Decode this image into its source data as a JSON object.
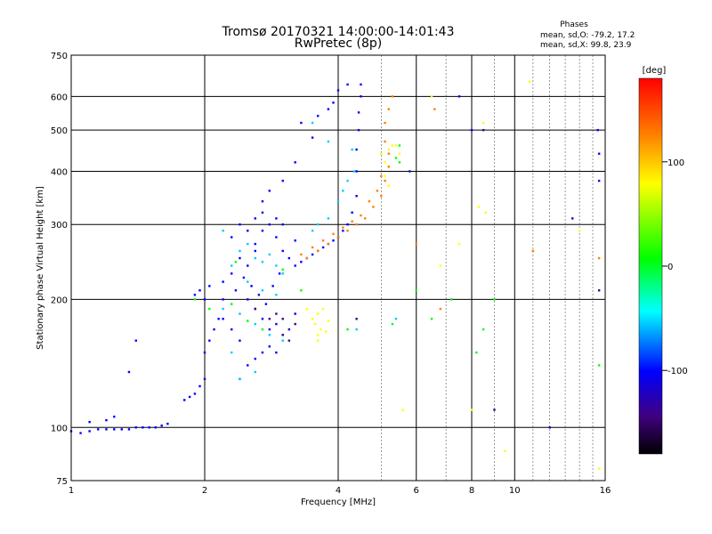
{
  "chart_data": {
    "type": "scatter",
    "title": "Tromsø 20170321 14:00:00-14:01:43",
    "subtitle": "RwPretec (8p)",
    "xlabel": "Frequency [MHz]",
    "ylabel": "Stationary phase Virtual Height [km]",
    "x_scale": "log",
    "y_scale": "log",
    "xlim": [
      1,
      16
    ],
    "ylim": [
      75,
      750
    ],
    "x_ticks": [
      1,
      2,
      4,
      6,
      8,
      10,
      16
    ],
    "y_ticks": [
      75,
      100,
      200,
      300,
      400,
      500,
      600,
      750
    ],
    "grid": true,
    "phases_info": {
      "heading": "Phases",
      "line_o": "mean, sd,O: -79.2, 17.2",
      "line_x": "mean, sd,X:  99.8, 23.9"
    },
    "colorbar": {
      "label": "[deg]",
      "range": [
        -180,
        180
      ],
      "ticks": [
        100,
        0,
        -100
      ],
      "colors": [
        "#ff0000",
        "#ff8000",
        "#ffff00",
        "#00ff00",
        "#00ffff",
        "#0000ff",
        "#400080",
        "#000000"
      ]
    },
    "series": [
      {
        "color_phase": -100,
        "points": [
          [
            1.0,
            98
          ],
          [
            1.05,
            97
          ],
          [
            1.1,
            98
          ],
          [
            1.15,
            99
          ],
          [
            1.2,
            99
          ],
          [
            1.25,
            99
          ],
          [
            1.3,
            99
          ],
          [
            1.35,
            99
          ],
          [
            1.4,
            100
          ],
          [
            1.45,
            100
          ],
          [
            1.5,
            100
          ],
          [
            1.55,
            100
          ],
          [
            1.6,
            101
          ],
          [
            1.65,
            102
          ],
          [
            1.2,
            104
          ],
          [
            1.25,
            106
          ],
          [
            1.1,
            103
          ],
          [
            1.35,
            135
          ],
          [
            1.4,
            160
          ],
          [
            1.8,
            116
          ],
          [
            1.85,
            118
          ],
          [
            1.9,
            120
          ],
          [
            1.95,
            125
          ],
          [
            2.0,
            130
          ],
          [
            2.0,
            150
          ],
          [
            2.05,
            160
          ],
          [
            2.1,
            170
          ],
          [
            2.15,
            180
          ],
          [
            1.9,
            205
          ],
          [
            1.95,
            210
          ],
          [
            2.0,
            200
          ],
          [
            2.05,
            215
          ],
          [
            2.2,
            220
          ],
          [
            2.3,
            230
          ],
          [
            2.4,
            250
          ],
          [
            2.5,
            240
          ],
          [
            2.6,
            260
          ],
          [
            2.2,
            180
          ],
          [
            2.3,
            170
          ],
          [
            2.4,
            160
          ],
          [
            2.5,
            200
          ],
          [
            2.6,
            190
          ],
          [
            2.7,
            180
          ],
          [
            2.8,
            170
          ],
          [
            2.9,
            175
          ],
          [
            3.0,
            165
          ],
          [
            2.3,
            280
          ],
          [
            2.4,
            300
          ],
          [
            2.5,
            290
          ],
          [
            2.6,
            310
          ],
          [
            2.7,
            320
          ],
          [
            2.8,
            300
          ],
          [
            2.9,
            280
          ],
          [
            3.0,
            260
          ],
          [
            3.1,
            250
          ],
          [
            3.2,
            240
          ],
          [
            3.3,
            245
          ],
          [
            3.4,
            250
          ],
          [
            3.5,
            255
          ],
          [
            3.6,
            260
          ],
          [
            3.7,
            265
          ],
          [
            3.8,
            270
          ],
          [
            3.9,
            275
          ],
          [
            4.0,
            280
          ],
          [
            4.1,
            290
          ],
          [
            4.2,
            300
          ],
          [
            4.3,
            320
          ],
          [
            4.4,
            350
          ],
          [
            4.4,
            400
          ],
          [
            4.4,
            450
          ],
          [
            4.45,
            500
          ],
          [
            4.45,
            550
          ],
          [
            4.5,
            600
          ],
          [
            4.5,
            640
          ],
          [
            4.0,
            620
          ],
          [
            4.2,
            640
          ],
          [
            3.0,
            380
          ],
          [
            3.2,
            420
          ],
          [
            3.5,
            480
          ],
          [
            3.8,
            560
          ],
          [
            2.7,
            340
          ],
          [
            2.8,
            360
          ],
          [
            2.4,
            130
          ],
          [
            2.5,
            140
          ],
          [
            2.6,
            145
          ],
          [
            2.7,
            150
          ],
          [
            2.8,
            155
          ],
          [
            2.9,
            150
          ],
          [
            3.1,
            170
          ],
          [
            3.2,
            185
          ],
          [
            15.5,
            380
          ],
          [
            15.4,
            500
          ],
          [
            12.0,
            100
          ],
          [
            13.5,
            310
          ],
          [
            7.5,
            600
          ],
          [
            8.0,
            500
          ],
          [
            5.8,
            400
          ],
          [
            15.5,
            440
          ],
          [
            2.2,
            200
          ],
          [
            2.35,
            210
          ],
          [
            2.45,
            225
          ],
          [
            2.55,
            215
          ],
          [
            2.65,
            205
          ],
          [
            2.75,
            195
          ],
          [
            2.85,
            215
          ],
          [
            2.95,
            230
          ],
          [
            3.3,
            520
          ],
          [
            3.6,
            540
          ],
          [
            3.9,
            580
          ],
          [
            2.6,
            270
          ],
          [
            2.7,
            290
          ],
          [
            2.9,
            310
          ],
          [
            3.0,
            300
          ],
          [
            3.2,
            275
          ]
        ]
      },
      {
        "color_phase": -60,
        "points": [
          [
            2.3,
            240
          ],
          [
            2.4,
            260
          ],
          [
            2.5,
            270
          ],
          [
            2.6,
            250
          ],
          [
            2.7,
            245
          ],
          [
            2.8,
            255
          ],
          [
            2.9,
            240
          ],
          [
            3.0,
            230
          ],
          [
            2.2,
            190
          ],
          [
            2.4,
            185
          ],
          [
            2.6,
            175
          ],
          [
            2.8,
            165
          ],
          [
            3.0,
            160
          ],
          [
            2.5,
            220
          ],
          [
            2.7,
            210
          ],
          [
            2.9,
            205
          ],
          [
            4.3,
            450
          ],
          [
            4.35,
            400
          ],
          [
            4.2,
            380
          ],
          [
            4.1,
            360
          ],
          [
            4.0,
            340
          ],
          [
            3.8,
            310
          ],
          [
            3.6,
            300
          ],
          [
            3.5,
            290
          ],
          [
            3.5,
            520
          ],
          [
            3.8,
            470
          ],
          [
            2.4,
            130
          ],
          [
            2.6,
            135
          ],
          [
            2.3,
            150
          ],
          [
            5.4,
            180
          ],
          [
            4.4,
            170
          ],
          [
            2.2,
            290
          ]
        ]
      },
      {
        "color_phase": 90,
        "points": [
          [
            3.5,
            180
          ],
          [
            3.55,
            175
          ],
          [
            3.6,
            185
          ],
          [
            3.65,
            170
          ],
          [
            3.7,
            190
          ],
          [
            3.75,
            168
          ],
          [
            3.8,
            178
          ],
          [
            3.6,
            165
          ],
          [
            5.1,
            420
          ],
          [
            5.2,
            450
          ],
          [
            5.3,
            460
          ],
          [
            5.0,
            440
          ],
          [
            5.1,
            390
          ],
          [
            5.2,
            370
          ],
          [
            5.4,
            460
          ],
          [
            5.5,
            440
          ],
          [
            3.4,
            190
          ],
          [
            3.6,
            160
          ],
          [
            6.5,
            600
          ],
          [
            8.5,
            520
          ],
          [
            10.8,
            650
          ],
          [
            15.5,
            80
          ],
          [
            9.5,
            88
          ],
          [
            8.0,
            110
          ],
          [
            5.6,
            110
          ],
          [
            6.8,
            240
          ],
          [
            11.0,
            260
          ],
          [
            14.0,
            290
          ],
          [
            7.5,
            270
          ],
          [
            8.3,
            330
          ],
          [
            8.6,
            320
          ]
        ]
      },
      {
        "color_phase": 130,
        "points": [
          [
            3.4,
            250
          ],
          [
            3.6,
            260
          ],
          [
            3.8,
            270
          ],
          [
            4.0,
            280
          ],
          [
            4.2,
            290
          ],
          [
            4.4,
            300
          ],
          [
            4.6,
            310
          ],
          [
            4.8,
            330
          ],
          [
            5.0,
            350
          ],
          [
            5.1,
            380
          ],
          [
            5.2,
            410
          ],
          [
            5.2,
            440
          ],
          [
            5.1,
            470
          ],
          [
            5.1,
            520
          ],
          [
            5.2,
            560
          ],
          [
            5.3,
            600
          ],
          [
            3.3,
            255
          ],
          [
            3.5,
            265
          ],
          [
            3.7,
            275
          ],
          [
            3.9,
            285
          ],
          [
            4.1,
            295
          ],
          [
            4.3,
            305
          ],
          [
            4.5,
            315
          ],
          [
            4.7,
            340
          ],
          [
            4.9,
            360
          ],
          [
            5.0,
            390
          ],
          [
            6.8,
            190
          ],
          [
            6.0,
            270
          ],
          [
            6.6,
            560
          ],
          [
            11.0,
            260
          ],
          [
            15.5,
            250
          ]
        ]
      },
      {
        "color_phase": 0,
        "points": [
          [
            2.3,
            195
          ],
          [
            2.35,
            245
          ],
          [
            2.5,
            178
          ],
          [
            2.7,
            170
          ],
          [
            3.0,
            235
          ],
          [
            3.3,
            210
          ],
          [
            5.5,
            460
          ],
          [
            5.4,
            430
          ],
          [
            1.9,
            200
          ],
          [
            2.05,
            190
          ],
          [
            4.2,
            170
          ],
          [
            5.3,
            175
          ],
          [
            6.0,
            210
          ],
          [
            7.2,
            200
          ],
          [
            8.5,
            170
          ],
          [
            9.0,
            200
          ],
          [
            5.5,
            420
          ],
          [
            15.5,
            140
          ],
          [
            6.5,
            180
          ],
          [
            8.2,
            150
          ]
        ]
      },
      {
        "color_phase": -150,
        "points": [
          [
            3.0,
            165
          ],
          [
            3.1,
            160
          ],
          [
            3.2,
            175
          ],
          [
            2.9,
            185
          ],
          [
            2.6,
            190
          ],
          [
            2.8,
            180
          ],
          [
            3.0,
            180
          ],
          [
            4.4,
            180
          ],
          [
            8.5,
            500
          ],
          [
            15.5,
            210
          ],
          [
            9.0,
            110
          ]
        ]
      }
    ]
  }
}
